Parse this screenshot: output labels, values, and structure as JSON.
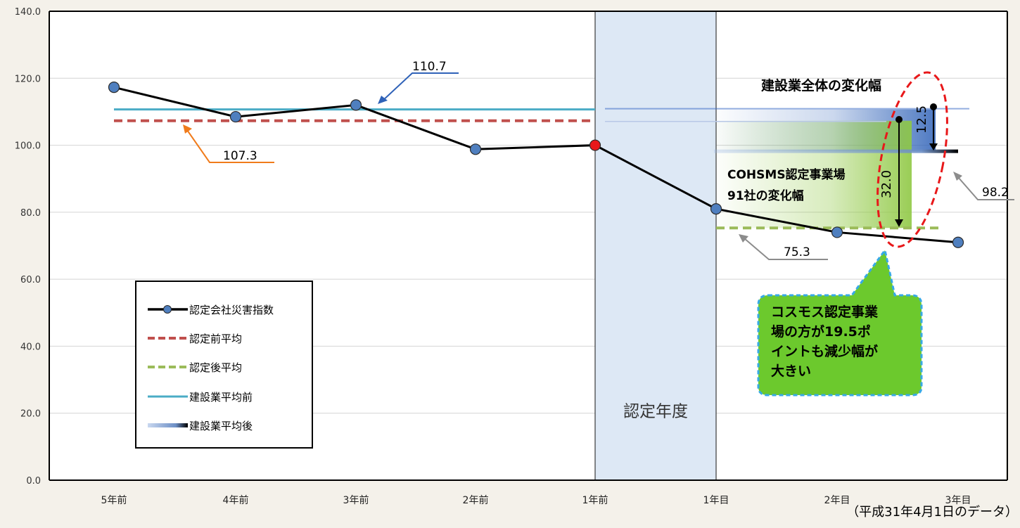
{
  "chart_data": {
    "type": "line",
    "categories": [
      "5年前",
      "4年前",
      "3年前",
      "2年前",
      "1年前",
      "1年目",
      "2年目",
      "3年目"
    ],
    "ylim": [
      0,
      140
    ],
    "yticks": [
      "0.0",
      "20.0",
      "40.0",
      "60.0",
      "80.0",
      "100.0",
      "120.0",
      "140.0"
    ],
    "grid": true,
    "series": [
      {
        "name": "認定会社災害指数",
        "values": [
          117.3,
          108.5,
          112.0,
          98.8,
          100.0,
          81.0,
          74.0,
          71.0
        ],
        "color": "#000000",
        "marker_color": "#4f7fbf",
        "highlight_marker": {
          "category": "1年前",
          "color": "#e8181a"
        }
      },
      {
        "name": "認定前平均",
        "y": 107.3,
        "x_range": [
          "5年前",
          "1年前"
        ],
        "style": "dashed",
        "color": "#c0504d"
      },
      {
        "name": "認定後平均",
        "y": 75.3,
        "x_range": [
          "1年目",
          "3年目"
        ],
        "style": "dashed",
        "color": "#9bbb59"
      },
      {
        "name": "建設業平均前",
        "y": 110.7,
        "x_range": [
          "5年前",
          "1年前"
        ],
        "style": "solid",
        "color": "#4bacc6"
      },
      {
        "name": "建設業平均後",
        "y": 98.2,
        "x_range": [
          "1年目",
          "3年目"
        ],
        "style": "gradient",
        "color": "#1f1f1f"
      }
    ],
    "band": {
      "label": "認定年度",
      "from": "1年前",
      "to": "1年目",
      "color": "#dde8f5"
    },
    "value_labels": {
      "before_industry": "110.7",
      "before_certified": "107.3",
      "after_certified": "75.3",
      "after_industry": "98.2"
    },
    "annotations": {
      "industry_change_title": "建設業全体の変化幅",
      "industry_change_value": "12.5",
      "certified_change_title_1": "COHSMS認定事業場",
      "certified_change_title_2": "91社の変化幅",
      "certified_change_value": "32.0",
      "callout_lines": [
        "コスモス認定事業",
        "場の方が19.5ポ",
        "イントも減少幅が",
        "大きい"
      ]
    },
    "note": "（平成31年4月1日のデータ）"
  },
  "colors": {
    "callout_fill": "#6cc92d",
    "callout_border": "#37a9e6",
    "oval": "#e8181a",
    "industry_arrow_fill": "#2f62b8",
    "certified_arrow_fill": "#8fc843"
  }
}
